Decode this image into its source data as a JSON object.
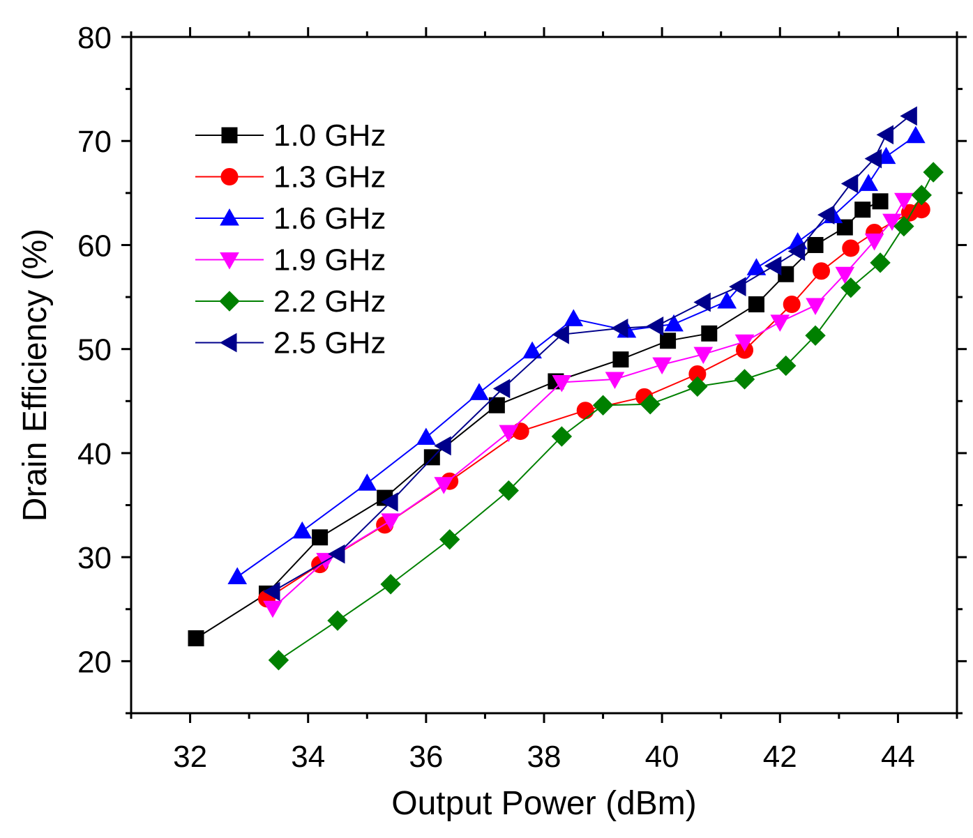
{
  "chart_data": {
    "type": "line",
    "xlabel": "Output Power (dBm)",
    "ylabel": "Drain Efficiency (%)",
    "xlim": [
      31,
      45
    ],
    "ylim": [
      15,
      80
    ],
    "x_ticks": [
      32,
      34,
      36,
      38,
      40,
      42,
      44
    ],
    "y_ticks": [
      20,
      30,
      40,
      50,
      60,
      70,
      80
    ],
    "legend_position": "top-left",
    "grid": false,
    "series": [
      {
        "name": "1.0 GHz",
        "color": "#000000",
        "marker": "square",
        "points": [
          [
            32.1,
            22.2
          ],
          [
            33.3,
            26.5
          ],
          [
            34.2,
            31.9
          ],
          [
            35.3,
            35.7
          ],
          [
            36.1,
            39.6
          ],
          [
            37.2,
            44.6
          ],
          [
            38.2,
            46.9
          ],
          [
            39.3,
            49.0
          ],
          [
            40.1,
            50.8
          ],
          [
            40.8,
            51.5
          ],
          [
            41.6,
            54.3
          ],
          [
            42.1,
            57.2
          ],
          [
            42.6,
            60.0
          ],
          [
            43.1,
            61.7
          ],
          [
            43.4,
            63.4
          ],
          [
            43.7,
            64.2
          ]
        ]
      },
      {
        "name": "1.3 GHz",
        "color": "#ff0000",
        "marker": "circle",
        "points": [
          [
            33.3,
            26.0
          ],
          [
            34.2,
            29.3
          ],
          [
            35.3,
            33.1
          ],
          [
            36.4,
            37.3
          ],
          [
            37.6,
            42.1
          ],
          [
            38.7,
            44.1
          ],
          [
            39.7,
            45.4
          ],
          [
            40.6,
            47.6
          ],
          [
            41.4,
            49.9
          ],
          [
            42.2,
            54.3
          ],
          [
            42.7,
            57.5
          ],
          [
            43.2,
            59.7
          ],
          [
            43.6,
            61.2
          ],
          [
            44.2,
            63.1
          ],
          [
            44.4,
            63.4
          ]
        ]
      },
      {
        "name": "1.6 GHz",
        "color": "#0000ff",
        "marker": "triangle-up",
        "points": [
          [
            32.8,
            28.1
          ],
          [
            33.9,
            32.5
          ],
          [
            35.0,
            37.1
          ],
          [
            36.0,
            41.5
          ],
          [
            36.9,
            45.8
          ],
          [
            37.8,
            49.8
          ],
          [
            38.5,
            52.9
          ],
          [
            39.4,
            51.8
          ],
          [
            40.2,
            52.4
          ],
          [
            41.1,
            54.6
          ],
          [
            41.6,
            57.8
          ],
          [
            42.3,
            60.3
          ],
          [
            42.9,
            62.8
          ],
          [
            43.5,
            65.9
          ],
          [
            43.8,
            68.5
          ],
          [
            44.3,
            70.5
          ]
        ]
      },
      {
        "name": "1.9 GHz",
        "color": "#ff00ff",
        "marker": "triangle-down",
        "points": [
          [
            33.4,
            25.1
          ],
          [
            34.3,
            29.7
          ],
          [
            35.4,
            33.5
          ],
          [
            36.3,
            37.0
          ],
          [
            37.4,
            42.0
          ],
          [
            38.3,
            46.8
          ],
          [
            39.2,
            47.1
          ],
          [
            40.0,
            48.5
          ],
          [
            40.7,
            49.5
          ],
          [
            41.4,
            50.7
          ],
          [
            42.0,
            52.6
          ],
          [
            42.6,
            54.2
          ],
          [
            43.1,
            57.2
          ],
          [
            43.6,
            60.4
          ],
          [
            43.9,
            62.3
          ],
          [
            44.1,
            64.3
          ]
        ]
      },
      {
        "name": "2.2 GHz",
        "color": "#008000",
        "marker": "diamond",
        "points": [
          [
            33.5,
            20.1
          ],
          [
            34.5,
            23.9
          ],
          [
            35.4,
            27.4
          ],
          [
            36.4,
            31.7
          ],
          [
            37.4,
            36.4
          ],
          [
            38.3,
            41.6
          ],
          [
            39.0,
            44.6
          ],
          [
            39.8,
            44.7
          ],
          [
            40.6,
            46.4
          ],
          [
            41.4,
            47.1
          ],
          [
            42.1,
            48.4
          ],
          [
            42.6,
            51.3
          ],
          [
            43.2,
            55.9
          ],
          [
            43.7,
            58.3
          ],
          [
            44.1,
            61.8
          ],
          [
            44.4,
            64.8
          ],
          [
            44.6,
            67.0
          ]
        ]
      },
      {
        "name": "2.5 GHz",
        "color": "#00008b",
        "marker": "triangle-left",
        "points": [
          [
            33.4,
            26.7
          ],
          [
            34.5,
            30.3
          ],
          [
            35.4,
            35.3
          ],
          [
            36.3,
            40.7
          ],
          [
            37.3,
            46.2
          ],
          [
            38.3,
            51.4
          ],
          [
            39.3,
            52.0
          ],
          [
            39.9,
            52.2
          ],
          [
            40.7,
            54.5
          ],
          [
            41.3,
            56.0
          ],
          [
            41.9,
            58.0
          ],
          [
            42.3,
            59.4
          ],
          [
            42.8,
            62.9
          ],
          [
            43.2,
            65.9
          ],
          [
            43.6,
            68.3
          ],
          [
            43.8,
            70.6
          ],
          [
            44.2,
            72.4
          ]
        ]
      }
    ]
  }
}
